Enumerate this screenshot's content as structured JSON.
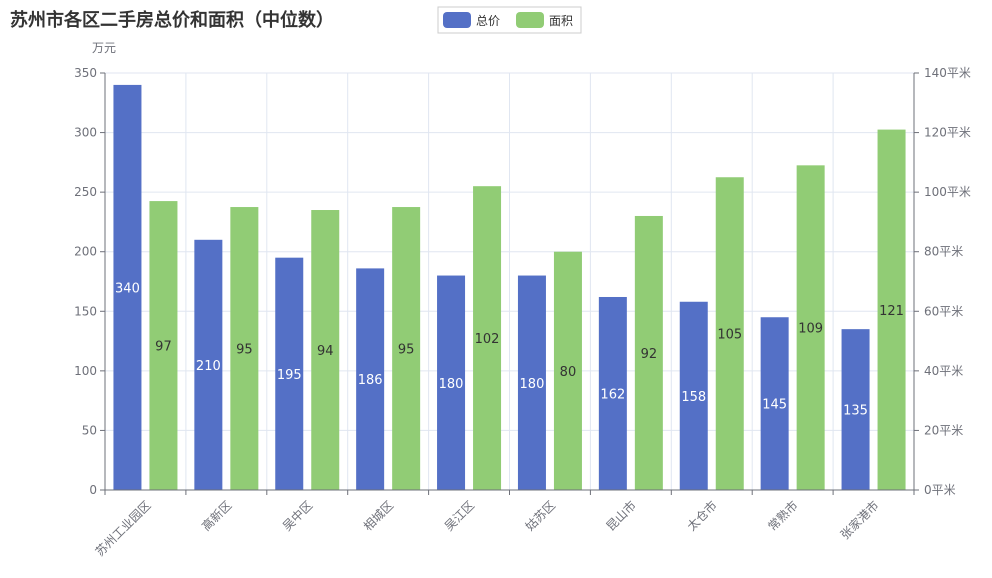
{
  "chart_data": {
    "type": "bar",
    "title": "苏州市各区二手房总价和面积（中位数）",
    "categories": [
      "苏州工业园区",
      "高新区",
      "吴中区",
      "相城区",
      "吴江区",
      "姑苏区",
      "昆山市",
      "太仓市",
      "常熟市",
      "张家港市"
    ],
    "series": [
      {
        "name": "总价",
        "axis": "left",
        "color": "#5470c6",
        "values": [
          340,
          210,
          195,
          186,
          180,
          180,
          162,
          158,
          145,
          135
        ]
      },
      {
        "name": "面积",
        "axis": "right",
        "color": "#91cc75",
        "values": [
          97,
          95,
          94,
          95,
          102,
          80,
          92,
          105,
          109,
          121
        ]
      }
    ],
    "y_left": {
      "unit_label": "万元",
      "min": 0,
      "max": 350,
      "ticks": [
        0,
        50,
        100,
        150,
        200,
        250,
        300,
        350
      ]
    },
    "y_right": {
      "min": 0,
      "max": 140,
      "ticks": [
        0,
        20,
        40,
        60,
        80,
        100,
        120,
        140
      ],
      "tick_suffix": "平米"
    },
    "legend": {
      "position": "top-center",
      "items": [
        "总价",
        "面积"
      ]
    },
    "grid": true
  }
}
